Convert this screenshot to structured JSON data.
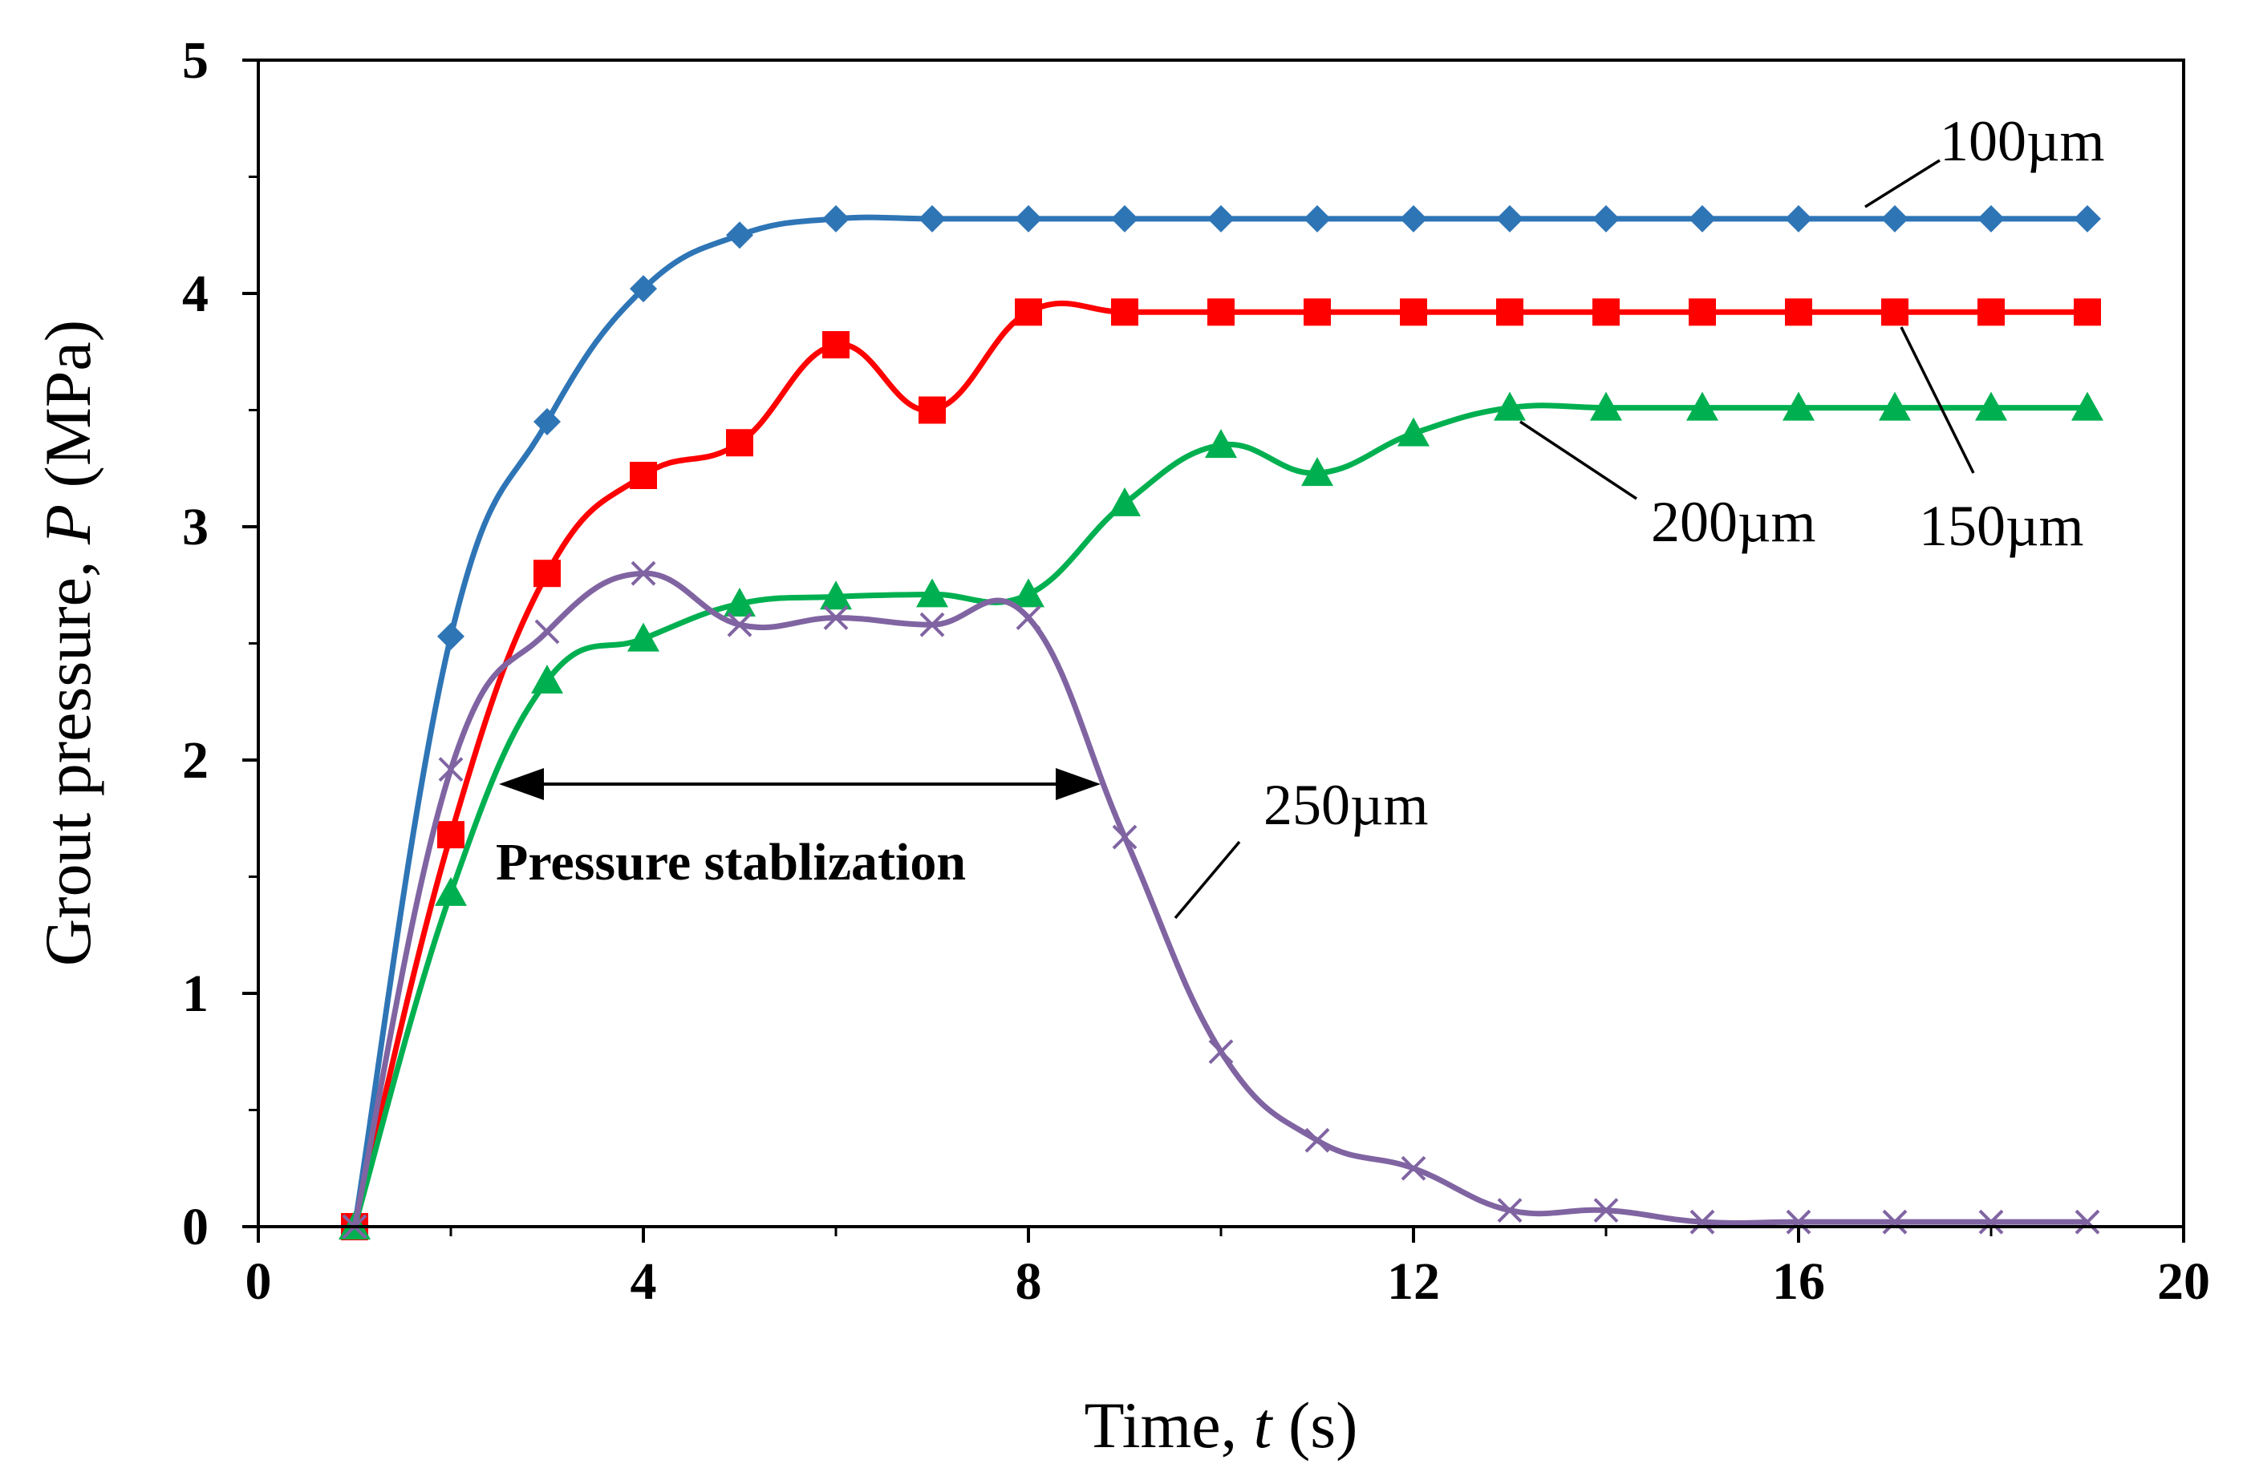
{
  "chart_data": {
    "type": "line",
    "title": "",
    "xlabel": "Time, t (s)",
    "xlabel_parts": {
      "prefix": "Time, ",
      "var": "t",
      "suffix": " (s)"
    },
    "ylabel": "Grout pressure, P (MPa)",
    "ylabel_parts": {
      "prefix": "Grout pressure, ",
      "var": "P",
      "suffix": " (MPa)"
    },
    "xlim": [
      0,
      20
    ],
    "ylim": [
      0,
      5
    ],
    "xticks": [
      0,
      4,
      8,
      12,
      16,
      20
    ],
    "yticks": [
      0,
      1,
      2,
      3,
      4,
      5
    ],
    "x_tick_labels": [
      "0",
      "4",
      "8",
      "12",
      "16",
      "20"
    ],
    "y_tick_labels": [
      "0",
      "1",
      "2",
      "3",
      "4",
      "5"
    ],
    "grid": false,
    "legend": "none (inline labels)",
    "x": [
      1,
      2,
      3,
      4,
      5,
      6,
      7,
      8,
      9,
      10,
      11,
      12,
      13,
      14,
      15,
      16,
      17,
      18,
      19
    ],
    "series": [
      {
        "name": "100µm",
        "color": "#2e75b6",
        "marker": "diamond",
        "values": [
          0,
          2.53,
          3.45,
          4.02,
          4.25,
          4.32,
          4.32,
          4.32,
          4.32,
          4.32,
          4.32,
          4.32,
          4.32,
          4.32,
          4.32,
          4.32,
          4.32,
          4.32,
          4.32
        ]
      },
      {
        "name": "150µm",
        "color": "#ff0000",
        "marker": "square",
        "values": [
          0,
          1.68,
          2.8,
          3.22,
          3.36,
          3.78,
          3.5,
          3.92,
          3.92,
          3.92,
          3.92,
          3.92,
          3.92,
          3.92,
          3.92,
          3.92,
          3.92,
          3.92,
          3.92
        ]
      },
      {
        "name": "200µm",
        "color": "#00b050",
        "marker": "triangle",
        "values": [
          0,
          1.43,
          2.34,
          2.52,
          2.67,
          2.7,
          2.71,
          2.71,
          3.1,
          3.35,
          3.23,
          3.4,
          3.51,
          3.51,
          3.51,
          3.51,
          3.51,
          3.51,
          3.51
        ]
      },
      {
        "name": "250µm",
        "color": "#8064a2",
        "marker": "x",
        "values": [
          0,
          1.96,
          2.55,
          2.8,
          2.58,
          2.61,
          2.58,
          2.61,
          1.67,
          0.75,
          0.37,
          0.25,
          0.07,
          0.07,
          0.02,
          0.02,
          0.02,
          0.02,
          0.02
        ]
      }
    ],
    "annotations": [
      {
        "text": "100µm",
        "series": "100µm"
      },
      {
        "text": "150µm",
        "series": "150µm"
      },
      {
        "text": "200µm",
        "series": "200µm"
      },
      {
        "text": "250µm",
        "series": "250µm"
      },
      {
        "text": "Pressure stablization",
        "x_range": [
          2.5,
          8.8
        ],
        "y": 1.93
      }
    ]
  }
}
